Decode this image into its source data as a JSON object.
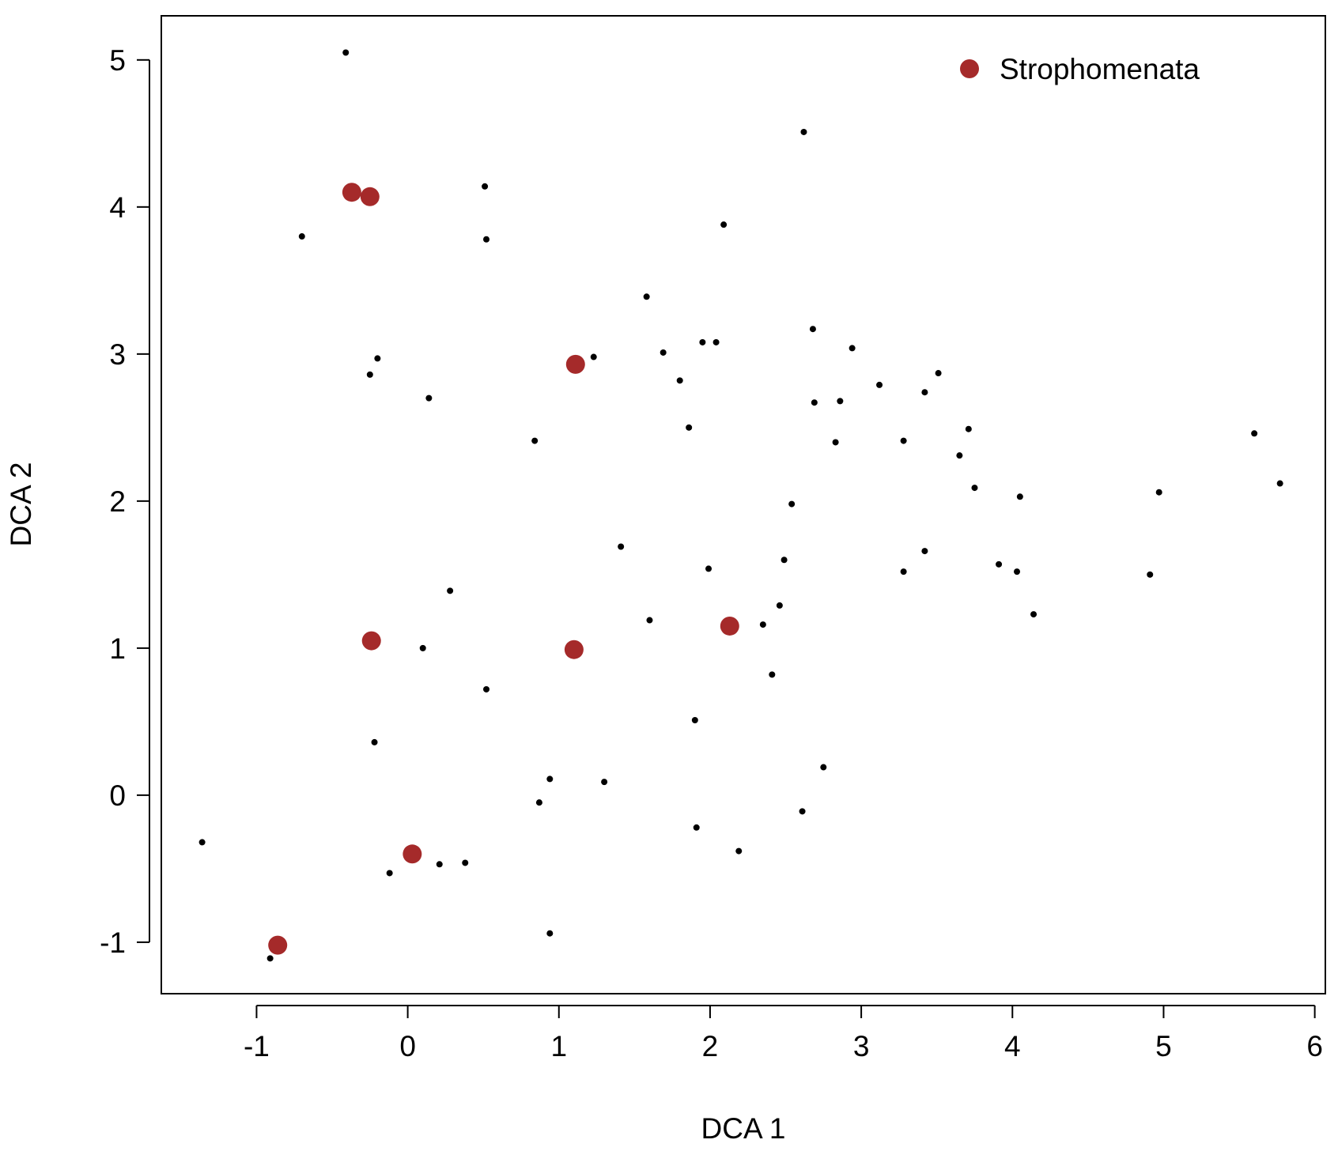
{
  "chart_data": {
    "type": "scatter",
    "xlabel": "DCA 1",
    "ylabel": "DCA 2",
    "xlim": [
      -1.63,
      6.07
    ],
    "ylim": [
      -1.35,
      5.3
    ],
    "x_ticks": [
      -1,
      0,
      1,
      2,
      3,
      4,
      5,
      6
    ],
    "y_ticks": [
      -1,
      0,
      1,
      2,
      3,
      4,
      5
    ],
    "x_tick_labels": [
      "-1",
      "0",
      "1",
      "2",
      "3",
      "4",
      "5",
      "6"
    ],
    "y_tick_labels": [
      "-1",
      "0",
      "1",
      "2",
      "3",
      "4",
      "5"
    ],
    "grid": false,
    "legend": {
      "position": "top-right",
      "entries": [
        "Strophomenata"
      ]
    },
    "series": [
      {
        "color": "#000000",
        "marker": "small-dot",
        "points": [
          [
            -0.41,
            5.05
          ],
          [
            -0.7,
            3.8
          ],
          [
            0.51,
            4.14
          ],
          [
            0.52,
            3.78
          ],
          [
            2.62,
            4.51
          ],
          [
            2.09,
            3.88
          ],
          [
            1.58,
            3.39
          ],
          [
            2.68,
            3.17
          ],
          [
            1.95,
            3.08
          ],
          [
            2.04,
            3.08
          ],
          [
            1.69,
            3.01
          ],
          [
            1.23,
            2.98
          ],
          [
            2.94,
            3.04
          ],
          [
            -0.2,
            2.97
          ],
          [
            -0.25,
            2.86
          ],
          [
            1.8,
            2.82
          ],
          [
            3.12,
            2.79
          ],
          [
            3.51,
            2.87
          ],
          [
            3.42,
            2.74
          ],
          [
            0.14,
            2.7
          ],
          [
            2.69,
            2.67
          ],
          [
            2.86,
            2.68
          ],
          [
            1.86,
            2.5
          ],
          [
            3.71,
            2.49
          ],
          [
            0.84,
            2.41
          ],
          [
            2.83,
            2.4
          ],
          [
            3.28,
            2.41
          ],
          [
            3.65,
            2.31
          ],
          [
            3.75,
            2.09
          ],
          [
            4.05,
            2.03
          ],
          [
            2.54,
            1.98
          ],
          [
            5.6,
            2.46
          ],
          [
            5.77,
            2.12
          ],
          [
            4.97,
            2.06
          ],
          [
            1.41,
            1.69
          ],
          [
            3.42,
            1.66
          ],
          [
            2.49,
            1.6
          ],
          [
            1.99,
            1.54
          ],
          [
            3.91,
            1.57
          ],
          [
            4.03,
            1.52
          ],
          [
            3.28,
            1.52
          ],
          [
            4.91,
            1.5
          ],
          [
            0.28,
            1.39
          ],
          [
            2.46,
            1.29
          ],
          [
            4.14,
            1.23
          ],
          [
            1.6,
            1.19
          ],
          [
            2.35,
            1.16
          ],
          [
            0.1,
            1.0
          ],
          [
            2.41,
            0.82
          ],
          [
            0.52,
            0.72
          ],
          [
            1.9,
            0.51
          ],
          [
            -0.22,
            0.36
          ],
          [
            2.75,
            0.19
          ],
          [
            0.94,
            0.11
          ],
          [
            1.3,
            0.09
          ],
          [
            0.87,
            -0.05
          ],
          [
            2.61,
            -0.11
          ],
          [
            1.91,
            -0.22
          ],
          [
            -1.36,
            -0.32
          ],
          [
            2.19,
            -0.38
          ],
          [
            0.38,
            -0.46
          ],
          [
            0.21,
            -0.47
          ],
          [
            -0.12,
            -0.53
          ],
          [
            0.94,
            -0.94
          ],
          [
            -0.91,
            -1.11
          ]
        ]
      },
      {
        "name": "Strophomenata",
        "color": "#a52a2a",
        "marker": "large-dot",
        "points": [
          [
            -0.37,
            4.1
          ],
          [
            -0.25,
            4.07
          ],
          [
            1.11,
            2.93
          ],
          [
            -0.24,
            1.05
          ],
          [
            1.1,
            0.99
          ],
          [
            2.13,
            1.15
          ],
          [
            0.03,
            -0.4
          ],
          [
            -0.86,
            -1.02
          ]
        ]
      }
    ]
  }
}
